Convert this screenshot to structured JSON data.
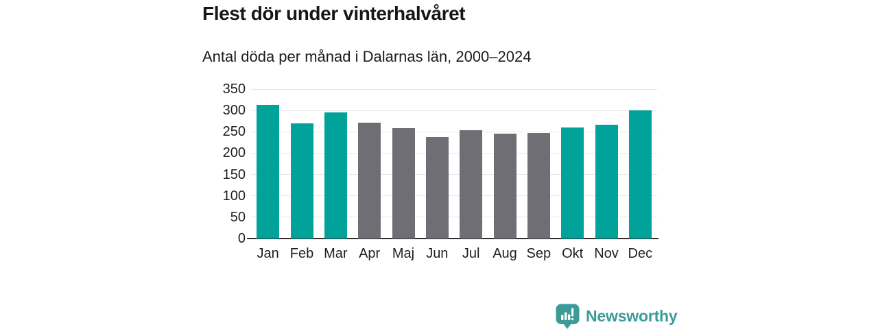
{
  "header": {
    "title": "Flest dör under vinterhalvåret",
    "subtitle": "Antal döda per månad i Dalarnas län, 2000–2024"
  },
  "chart_data": {
    "type": "bar",
    "title": "Flest dör under vinterhalvåret",
    "subtitle": "Antal döda per månad i Dalarnas län, 2000–2024",
    "categories": [
      "Jan",
      "Feb",
      "Mar",
      "Apr",
      "Maj",
      "Jun",
      "Jul",
      "Aug",
      "Sep",
      "Okt",
      "Nov",
      "Dec"
    ],
    "values": [
      313,
      269,
      295,
      271,
      258,
      238,
      253,
      245,
      247,
      260,
      267,
      301
    ],
    "bar_colors": [
      "#00A29A",
      "#00A29A",
      "#00A29A",
      "#6F6E74",
      "#6F6E74",
      "#6F6E74",
      "#6F6E74",
      "#6F6E74",
      "#6F6E74",
      "#00A29A",
      "#00A29A",
      "#00A29A"
    ],
    "xlabel": "",
    "ylabel": "",
    "ylim": [
      0,
      350
    ],
    "yticks": [
      0,
      50,
      100,
      150,
      200,
      250,
      300,
      350
    ],
    "grid": true,
    "legend": "none",
    "colors": {
      "winter_bar": "#00A29A",
      "summer_bar": "#6F6E74",
      "gridline": "#e7e7e7",
      "axis": "#2e2e2e"
    }
  },
  "footer": {
    "brand": "Newsworthy",
    "logo_icon": "bar-chart-speech-bubble-icon",
    "brand_color": "#3B9B99"
  }
}
